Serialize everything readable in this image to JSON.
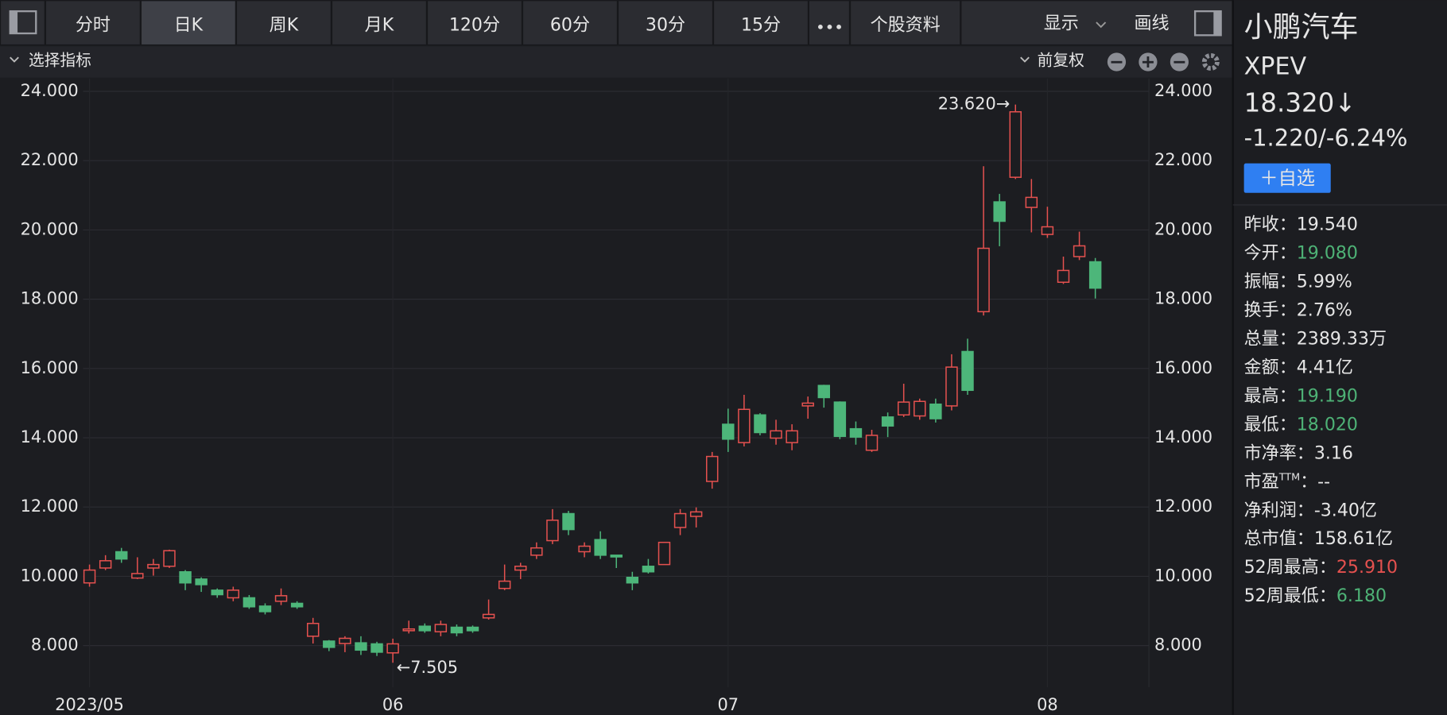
{
  "toolbar": {
    "tabs": [
      {
        "label": "分时"
      },
      {
        "label": "日K",
        "active": true
      },
      {
        "label": "周K"
      },
      {
        "label": "月K"
      },
      {
        "label": "120分"
      },
      {
        "label": "60分"
      },
      {
        "label": "30分"
      },
      {
        "label": "15分"
      }
    ],
    "info_tab": "个股资料",
    "display": "显示",
    "draw": "画线"
  },
  "indicator_bar": {
    "selector": "选择指标",
    "adjust": "前复权"
  },
  "chart_data": {
    "type": "candlestick",
    "categories": [
      "2023/05",
      null,
      null,
      null,
      null,
      null,
      null,
      null,
      null,
      null,
      null,
      null,
      null,
      null,
      null,
      null,
      null,
      null,
      null,
      "06",
      null,
      null,
      null,
      null,
      null,
      null,
      null,
      null,
      null,
      null,
      null,
      null,
      null,
      null,
      null,
      null,
      null,
      null,
      null,
      null,
      "07",
      null,
      null,
      null,
      null,
      null,
      null,
      null,
      null,
      null,
      null,
      null,
      null,
      null,
      null,
      null,
      null,
      null,
      null,
      null,
      "08",
      null,
      null,
      null
    ],
    "open": [
      9.81,
      10.24,
      10.71,
      9.95,
      10.24,
      10.29,
      10.13,
      9.92,
      9.6,
      9.38,
      9.38,
      9.14,
      9.28,
      9.22,
      8.27,
      8.13,
      8.06,
      8.08,
      8.05,
      7.79,
      8.43,
      8.56,
      8.4,
      8.53,
      8.53,
      8.8,
      9.65,
      10.18,
      10.61,
      11.03,
      11.81,
      10.71,
      11.06,
      10.61,
      9.97,
      10.29,
      10.34,
      11.41,
      11.73,
      12.74,
      14.39,
      13.86,
      14.66,
      13.99,
      13.86,
      14.92,
      15.51,
      15.03,
      14.26,
      13.64,
      14.6,
      14.66,
      14.63,
      14.97,
      14.92,
      16.49,
      17.64,
      20.81,
      21.52,
      20.65,
      19.87,
      18.49,
      19.23,
      19.08
    ],
    "high": [
      10.34,
      10.61,
      10.82,
      10.55,
      10.5,
      10.77,
      10.18,
      9.97,
      9.65,
      9.7,
      9.46,
      9.22,
      9.65,
      9.28,
      8.8,
      8.16,
      8.27,
      8.27,
      8.11,
      8.2,
      8.72,
      8.64,
      8.72,
      8.61,
      8.58,
      9.33,
      10.34,
      10.39,
      10.98,
      11.94,
      11.89,
      10.98,
      11.3,
      10.61,
      10.13,
      10.5,
      10.98,
      11.94,
      11.99,
      13.59,
      14.84,
      15.24,
      14.71,
      14.52,
      14.39,
      15.19,
      15.53,
      15.05,
      14.47,
      14.23,
      14.73,
      15.56,
      15.13,
      15.13,
      16.41,
      16.86,
      21.84,
      21.04,
      23.62,
      21.47,
      20.67,
      19.23,
      19.95,
      19.19
    ],
    "low": [
      9.7,
      10.18,
      10.39,
      9.92,
      10.02,
      10.24,
      9.6,
      9.55,
      9.38,
      9.28,
      9.06,
      8.9,
      9.17,
      9.06,
      8.06,
      7.84,
      7.81,
      7.73,
      7.7,
      7.505,
      8.35,
      8.37,
      8.27,
      8.27,
      8.37,
      8.75,
      9.6,
      9.92,
      10.5,
      10.93,
      11.19,
      10.55,
      10.5,
      10.24,
      9.6,
      10.08,
      10.34,
      11.19,
      11.41,
      12.53,
      13.59,
      13.75,
      14.07,
      13.8,
      13.64,
      14.55,
      14.87,
      13.96,
      13.8,
      13.59,
      14.02,
      14.6,
      14.52,
      14.44,
      14.79,
      15.24,
      17.53,
      19.53,
      21.47,
      19.93,
      19.77,
      18.44,
      19.13,
      18.02
    ],
    "close": [
      10.18,
      10.45,
      10.5,
      10.08,
      10.34,
      10.74,
      9.81,
      9.76,
      9.47,
      9.6,
      9.12,
      8.98,
      9.44,
      9.12,
      8.64,
      7.95,
      8.21,
      7.87,
      7.81,
      8.05,
      8.48,
      8.43,
      8.61,
      8.37,
      8.43,
      8.9,
      9.86,
      10.29,
      10.82,
      11.62,
      11.35,
      10.87,
      10.61,
      10.56,
      9.81,
      10.13,
      10.98,
      11.81,
      11.86,
      13.46,
      13.96,
      14.82,
      14.15,
      14.2,
      14.2,
      15.0,
      15.16,
      14.04,
      14.02,
      14.07,
      14.34,
      15.03,
      15.05,
      14.55,
      16.04,
      15.37,
      19.47,
      20.25,
      23.41,
      20.94,
      20.09,
      18.83,
      19.54,
      18.32
    ],
    "up_color": "#e5514f",
    "down_color": "#4db67a",
    "ylim": [
      6.8,
      24.37
    ],
    "yticks": [
      {
        "value": 8,
        "label": "8.000"
      },
      {
        "value": 10,
        "label": "10.000"
      },
      {
        "value": 12,
        "label": "12.000"
      },
      {
        "value": 14,
        "label": "14.000"
      },
      {
        "value": 16,
        "label": "16.000"
      },
      {
        "value": 18,
        "label": "18.000"
      },
      {
        "value": 20,
        "label": "20.000"
      },
      {
        "value": 22,
        "label": "22.000"
      },
      {
        "value": 24,
        "label": "24.000"
      }
    ],
    "grid": true,
    "annotations": [
      {
        "label": "23.620→",
        "value": 23.62
      },
      {
        "label": "←7.505",
        "value": 7.505
      }
    ]
  },
  "sidebar": {
    "name": "小鹏汽车",
    "ticker": "XPEV",
    "price": "18.320↓",
    "change": "-1.220/-6.24%",
    "quote_color": "#4eb276",
    "button": "＋自选",
    "separator": "：",
    "stats": [
      {
        "label": "昨收",
        "value": "19.540"
      },
      {
        "label": "今开",
        "value": "19.080",
        "color": "#4eb276"
      },
      {
        "label": "振幅",
        "value": "5.99%"
      },
      {
        "label": "换手",
        "value": "2.76%"
      },
      {
        "label": "总量",
        "value": "2389.33万"
      },
      {
        "label": "金额",
        "value": "4.41亿"
      },
      {
        "label": "最高",
        "value": "19.190",
        "color": "#4eb276"
      },
      {
        "label": "最低",
        "value": "18.020",
        "color": "#4eb276"
      },
      {
        "label": "市净率",
        "value": "3.16"
      },
      {
        "label": "市盈",
        "sup": "TTM",
        "value": "--"
      },
      {
        "label": "净利润",
        "value": "-3.40亿"
      },
      {
        "label": "总市值",
        "value": "158.61亿"
      },
      {
        "label": "52周最高",
        "value": "25.910",
        "color": "#e5514f"
      },
      {
        "label": "52周最低",
        "value": "6.180",
        "color": "#4eb276"
      }
    ]
  }
}
